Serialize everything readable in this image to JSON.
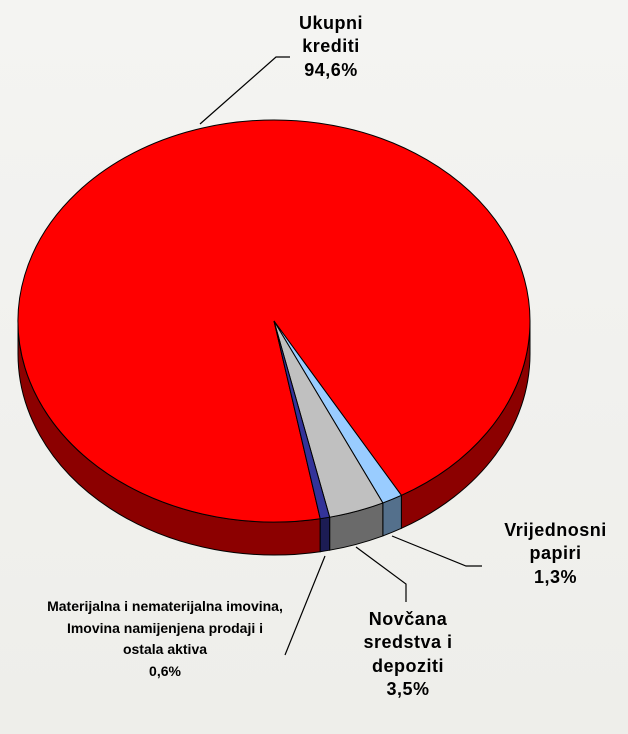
{
  "chart_data": {
    "type": "pie3d",
    "categories": [
      "Ukupni krediti",
      "Vrijednosni papiri",
      "Novčana sredstva i depoziti",
      "Materijalna i nematerijalna imovina, Imovina namijenjena prodaji i ostala aktiva"
    ],
    "values": [
      94.6,
      1.3,
      3.5,
      0.6
    ],
    "value_labels": [
      "94,6%",
      "1,3%",
      "3,5%",
      "0,6%"
    ],
    "colors": [
      "#ff0000",
      "#99ccff",
      "#c0c0c0",
      "#333399"
    ]
  }
}
